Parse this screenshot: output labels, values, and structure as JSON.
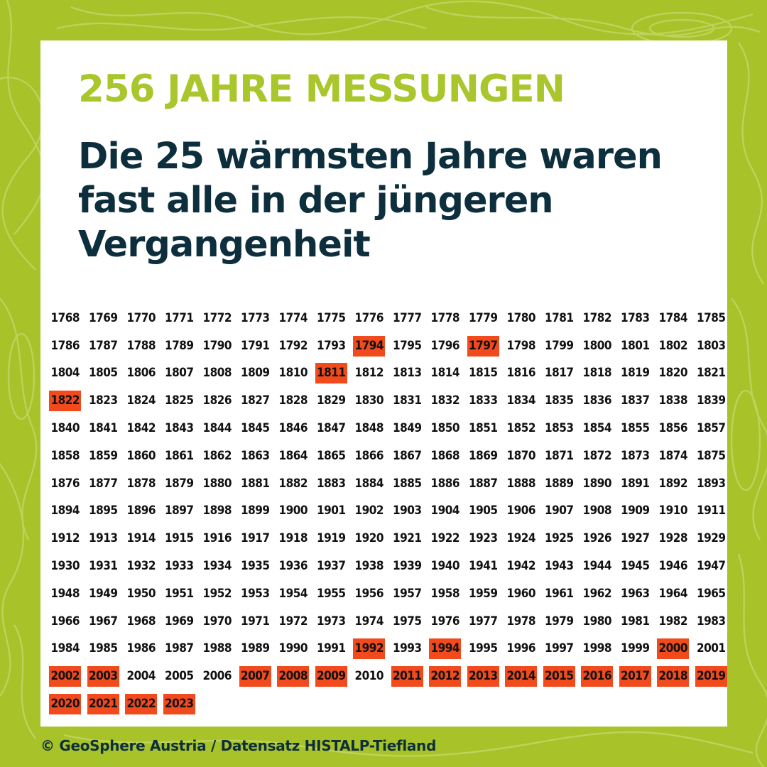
{
  "kicker": "256 JAHRE MESSUNGEN",
  "headline": "Die 25 wärmsten Jahre waren fast alle in der jüngeren Vergangenheit",
  "year_range": {
    "start": 1768,
    "end": 2023
  },
  "warmest_years": [
    1794,
    1797,
    1811,
    1822,
    1992,
    1994,
    2000,
    2002,
    2003,
    2007,
    2008,
    2009,
    2011,
    2012,
    2013,
    2014,
    2015,
    2016,
    2017,
    2018,
    2019,
    2020,
    2021,
    2022,
    2023
  ],
  "credit": "© GeoSphere Austria / Datensatz HISTALP-Tiefland",
  "colors": {
    "background_green": "#a8c32a",
    "kicker_green": "#a9c62d",
    "headline_navy": "#0d2e3c",
    "highlight_orange": "#f04a1d",
    "card_white": "#ffffff"
  }
}
